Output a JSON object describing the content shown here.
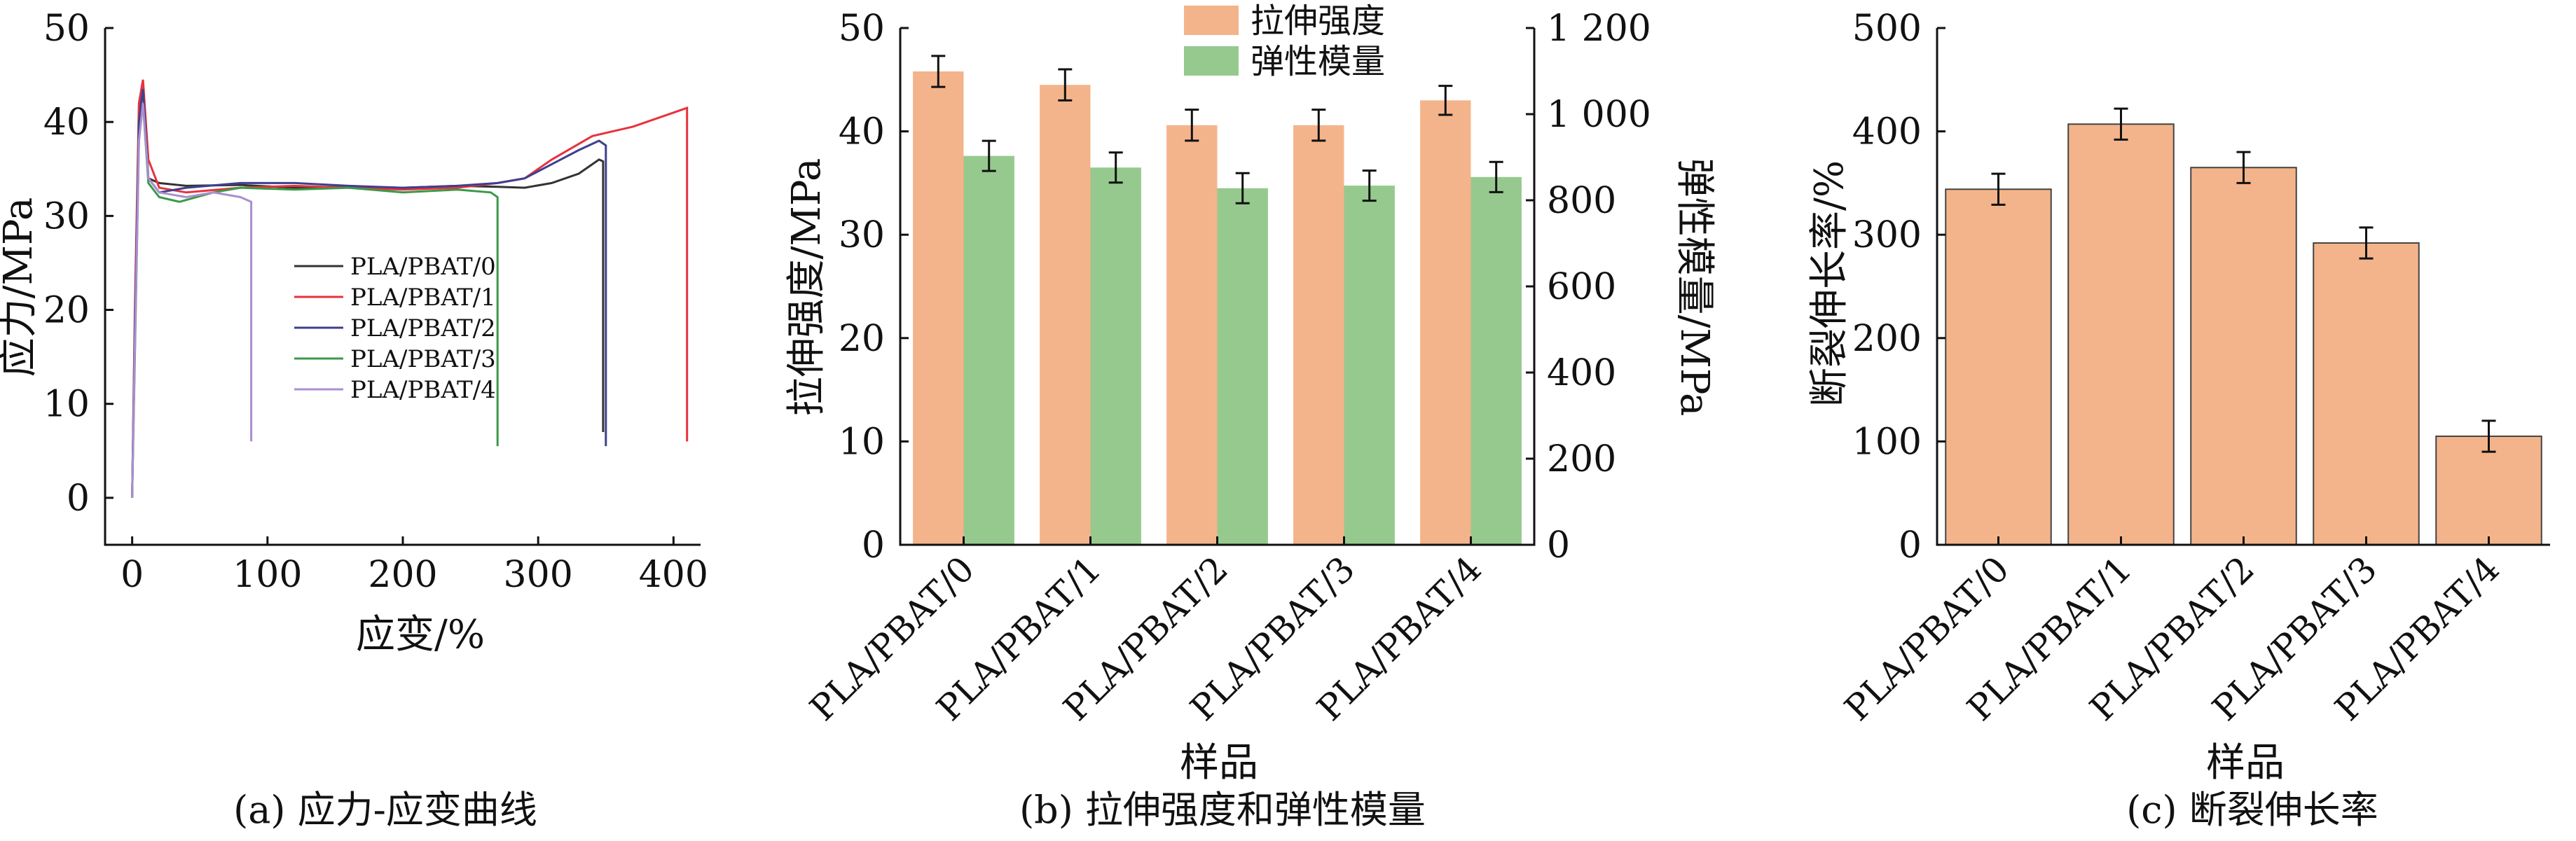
{
  "colors": {
    "strength": "#f4b48b",
    "modulus": "#96c98e",
    "elongation": "#f4b48b",
    "axis": "#111111",
    "curve_0": "#333333",
    "curve_1": "#e8323c",
    "curve_2": "#3f3f8f",
    "curve_3": "#3a9a48",
    "curve_4": "#a98fd0"
  },
  "captions": {
    "a": "(a) 应力-应变曲线",
    "b": "(b) 拉伸强度和弹性模量",
    "c": "(c) 断裂伸长率"
  },
  "chart_data": [
    {
      "type": "line",
      "xlabel": "应变/%",
      "ylabel": "应力/MPa",
      "xlim": [
        -20,
        420
      ],
      "ylim": [
        -5,
        50
      ],
      "xticks": [
        "0",
        "100",
        "200",
        "300",
        "400"
      ],
      "yticks": [
        "0",
        "10",
        "20",
        "30",
        "40",
        "50"
      ],
      "legend_position": "center",
      "series": [
        {
          "name": "PLA/PBAT/0",
          "x": [
            0,
            2,
            5,
            8,
            12,
            20,
            40,
            80,
            120,
            160,
            200,
            240,
            270,
            290,
            310,
            330,
            345,
            348,
            348
          ],
          "y": [
            0,
            18,
            40,
            44,
            34,
            33.5,
            33.2,
            33.3,
            33,
            33.1,
            33,
            33.2,
            33.1,
            33,
            33.5,
            34.5,
            36,
            35.8,
            7
          ]
        },
        {
          "name": "PLA/PBAT/1",
          "x": [
            0,
            2,
            5,
            8,
            12,
            20,
            40,
            80,
            120,
            160,
            200,
            240,
            270,
            290,
            310,
            340,
            370,
            400,
            410,
            410
          ],
          "y": [
            0,
            20,
            42,
            44.5,
            36,
            33,
            32.5,
            33,
            33.2,
            33,
            32.8,
            33,
            33.5,
            34,
            36,
            38.5,
            39.5,
            41,
            41.5,
            6
          ]
        },
        {
          "name": "PLA/PBAT/2",
          "x": [
            0,
            2,
            5,
            8,
            12,
            20,
            40,
            80,
            120,
            160,
            200,
            240,
            270,
            290,
            310,
            330,
            345,
            350,
            350
          ],
          "y": [
            0,
            18,
            40,
            43.5,
            34,
            32.5,
            33,
            33.5,
            33.5,
            33.2,
            33,
            33.2,
            33.5,
            34,
            35.5,
            37,
            38,
            37.5,
            5.5
          ]
        },
        {
          "name": "PLA/PBAT/3",
          "x": [
            0,
            2,
            5,
            8,
            12,
            20,
            35,
            60,
            80,
            120,
            160,
            200,
            240,
            265,
            270,
            270
          ],
          "y": [
            0,
            15,
            38,
            42,
            33.5,
            32,
            31.5,
            32.5,
            33,
            32.8,
            33,
            32.5,
            32.8,
            32.5,
            32,
            5.5
          ]
        },
        {
          "name": "PLA/PBAT/4",
          "x": [
            0,
            2,
            5,
            8,
            12,
            20,
            40,
            60,
            80,
            88,
            88
          ],
          "y": [
            0,
            16,
            38,
            42,
            34,
            32.5,
            32,
            32.5,
            32,
            31.5,
            6
          ]
        }
      ]
    },
    {
      "type": "bar",
      "xlabel": "样品",
      "ylabel": "拉伸强度/MPa",
      "ylabel_right": "弹性模量/MPa",
      "categories": [
        "PLA/PBAT/0",
        "PLA/PBAT/1",
        "PLA/PBAT/2",
        "PLA/PBAT/3",
        "PLA/PBAT/4"
      ],
      "ylim": [
        0,
        50
      ],
      "ylim_right": [
        0,
        1200
      ],
      "yticks": [
        "0",
        "10",
        "20",
        "30",
        "40",
        "50"
      ],
      "yticks_right": [
        "0",
        "200",
        "400",
        "600",
        "800",
        "1 000",
        "1 200"
      ],
      "legend_position": "top-center",
      "series": [
        {
          "name": "拉伸强度",
          "axis": "left",
          "values": [
            45.8,
            44.5,
            40.6,
            40.6,
            43
          ],
          "errors": [
            1.5,
            1.5,
            1.5,
            1.5,
            1.4
          ]
        },
        {
          "name": "弹性模量",
          "axis": "right",
          "values": [
            903,
            876,
            828,
            834,
            854
          ],
          "errors": [
            35,
            35,
            35,
            35,
            35
          ]
        }
      ]
    },
    {
      "type": "bar",
      "xlabel": "样品",
      "ylabel": "断裂伸长率/%",
      "categories": [
        "PLA/PBAT/0",
        "PLA/PBAT/1",
        "PLA/PBAT/2",
        "PLA/PBAT/3",
        "PLA/PBAT/4"
      ],
      "ylim": [
        0,
        500
      ],
      "yticks": [
        "0",
        "100",
        "200",
        "300",
        "400",
        "500"
      ],
      "series": [
        {
          "values": [
            344,
            407,
            365,
            292,
            105
          ],
          "errors": [
            15,
            15,
            15,
            15,
            15
          ]
        }
      ]
    }
  ]
}
